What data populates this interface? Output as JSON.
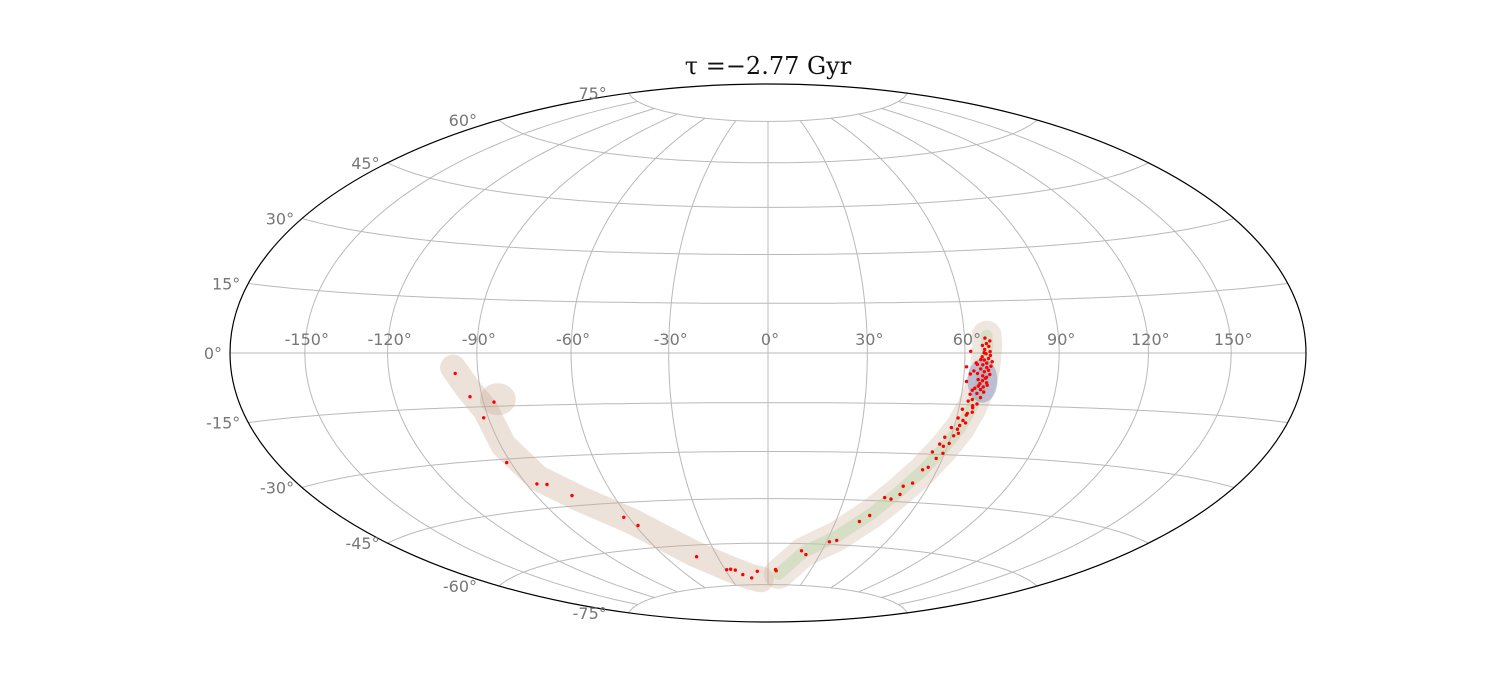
{
  "chart_data": {
    "type": "scatter",
    "projection": "hammer",
    "title": "τ =−2.77 Gyr",
    "grid": true,
    "xlabel": "",
    "ylabel": "",
    "xlim": [
      -180,
      180
    ],
    "ylim": [
      -90,
      90
    ],
    "longitude_ticks": [
      {
        "value": -150,
        "label": "-150°"
      },
      {
        "value": -120,
        "label": "-120°"
      },
      {
        "value": -90,
        "label": "-90°"
      },
      {
        "value": -60,
        "label": "-60°"
      },
      {
        "value": -30,
        "label": "-30°"
      },
      {
        "value": 0,
        "label": "0°"
      },
      {
        "value": 30,
        "label": "30°"
      },
      {
        "value": 60,
        "label": "60°"
      },
      {
        "value": 90,
        "label": "90°"
      },
      {
        "value": 120,
        "label": "120°"
      },
      {
        "value": 150,
        "label": "150°"
      }
    ],
    "latitude_ticks": [
      {
        "value": 75,
        "label": "75°"
      },
      {
        "value": 60,
        "label": "60°"
      },
      {
        "value": 45,
        "label": "45°"
      },
      {
        "value": 30,
        "label": "30°"
      },
      {
        "value": 15,
        "label": "15°"
      },
      {
        "value": 0,
        "label": "0°"
      },
      {
        "value": -15,
        "label": "-15°"
      },
      {
        "value": -30,
        "label": "-30°"
      },
      {
        "value": -45,
        "label": "-45°"
      },
      {
        "value": -60,
        "label": "-60°"
      },
      {
        "value": -75,
        "label": "-75°"
      }
    ],
    "colors": {
      "points": "#ff0000",
      "halo": "#c9ad95",
      "stream_band": "#b9d7a8",
      "core_blob": "#7a8fbf",
      "grid": "#b9b9b9",
      "frame": "#000000",
      "tick_labels": "#777777"
    },
    "series": [
      {
        "points": [
          [
            -97.5,
            -5.6
          ],
          [
            -94.0,
            -12.1
          ],
          [
            -86.5,
            -13.8
          ],
          [
            -91.6,
            -18.1
          ],
          [
            -91.5,
            -31.0
          ],
          [
            -86.0,
            -37.7
          ],
          [
            -82.4,
            -38.1
          ],
          [
            -76.1,
            -41.9
          ],
          [
            -62.1,
            -49.6
          ],
          [
            -58.8,
            -52.5
          ],
          [
            -42.1,
            -64.0
          ],
          [
            -26.0,
            -69.0
          ],
          [
            -28.9,
            -69.1
          ],
          [
            -23.1,
            -69.4
          ],
          [
            -19.1,
            -71.1
          ],
          [
            -13.1,
            -72.4
          ],
          [
            -7.7,
            -70.0
          ],
          [
            5.3,
            -69.4
          ],
          [
            5.9,
            -69.8
          ],
          [
            18.7,
            -62.5
          ],
          [
            22.0,
            -63.8
          ],
          [
            31.5,
            -59.1
          ],
          [
            34.8,
            -58.5
          ],
          [
            40.5,
            -51.9
          ],
          [
            43.5,
            -49.8
          ],
          [
            45.7,
            -43.9
          ],
          [
            48.5,
            -44.3
          ],
          [
            51.0,
            -42.7
          ],
          [
            50.6,
            -40.1
          ],
          [
            53.5,
            -39.0
          ],
          [
            54.8,
            -34.8
          ],
          [
            56.4,
            -34.0
          ],
          [
            57.8,
            -31.2
          ],
          [
            59.4,
            -29.6
          ],
          [
            58.6,
            -27.5
          ],
          [
            60.2,
            -26.6
          ],
          [
            60.8,
            -24.3
          ],
          [
            62.1,
            -23.5
          ],
          [
            61.7,
            -21.2
          ],
          [
            63.4,
            -20.4
          ],
          [
            62.9,
            -18.1
          ],
          [
            64.6,
            -17.2
          ],
          [
            64.2,
            -15.3
          ],
          [
            65.5,
            -14.8
          ],
          [
            63.7,
            -13.5
          ],
          [
            66.2,
            -12.9
          ],
          [
            64.8,
            -11.7
          ],
          [
            66.9,
            -11.3
          ],
          [
            63.9,
            -10.2
          ],
          [
            66.5,
            -9.8
          ],
          [
            65.3,
            -8.9
          ],
          [
            67.4,
            -8.6
          ],
          [
            64.6,
            -7.7
          ],
          [
            66.8,
            -7.3
          ],
          [
            65.9,
            -6.6
          ],
          [
            68.1,
            -6.2
          ],
          [
            64.2,
            -5.9
          ],
          [
            66.3,
            -5.4
          ],
          [
            67.6,
            -5.0
          ],
          [
            65.1,
            -4.6
          ],
          [
            67.0,
            -4.2
          ],
          [
            68.3,
            -3.8
          ],
          [
            65.7,
            -3.4
          ],
          [
            66.9,
            -2.9
          ],
          [
            68.6,
            -2.5
          ],
          [
            66.1,
            -2.0
          ],
          [
            67.4,
            -1.6
          ],
          [
            65.4,
            -1.1
          ],
          [
            68.0,
            -0.7
          ],
          [
            66.6,
            -0.2
          ],
          [
            67.9,
            0.4
          ],
          [
            66.2,
            1.0
          ],
          [
            67.5,
            1.9
          ],
          [
            66.8,
            2.7
          ],
          [
            67.9,
            3.5
          ],
          [
            66.4,
            4.3
          ],
          [
            63.2,
            -10.8
          ],
          [
            62.5,
            -14.0
          ],
          [
            61.2,
            -16.4
          ],
          [
            60.5,
            -19.0
          ],
          [
            59.2,
            -21.9
          ],
          [
            58.0,
            -24.8
          ],
          [
            57.1,
            -26.9
          ],
          [
            55.6,
            -29.3
          ],
          [
            61.0,
            -8.3
          ],
          [
            62.0,
            -6.1
          ],
          [
            60.6,
            -4.0
          ],
          [
            61.8,
            0.5
          ],
          [
            63.6,
            -2.9
          ],
          [
            63.0,
            -5.2
          ],
          [
            64.9,
            -9.6
          ],
          [
            62.7,
            -12.0
          ],
          [
            65.8,
            -10.6
          ],
          [
            67.7,
            -9.3
          ],
          [
            66.0,
            -8.0
          ],
          [
            67.2,
            -7.0
          ],
          [
            64.4,
            -15.9
          ],
          [
            63.1,
            -17.6
          ],
          [
            62.3,
            -19.7
          ],
          [
            61.3,
            -22.3
          ],
          [
            64.0,
            -3.3
          ],
          [
            65.0,
            -1.9
          ],
          [
            66.0,
            0.1
          ],
          [
            65.5,
            2.2
          ]
        ]
      }
    ],
    "halo_path": [
      [
        -98,
        -4
      ],
      [
        -94,
        -10
      ],
      [
        -90,
        -16
      ],
      [
        -89,
        -26
      ],
      [
        -84,
        -36
      ],
      [
        -74,
        -43
      ],
      [
        -60,
        -51
      ],
      [
        -42,
        -63
      ],
      [
        -26,
        -69
      ],
      [
        -14,
        -72
      ],
      [
        -6,
        -73
      ]
    ],
    "stream_path": [
      [
        8,
        -71
      ],
      [
        20,
        -63
      ],
      [
        34,
        -57
      ],
      [
        44,
        -49
      ],
      [
        50,
        -42
      ],
      [
        55,
        -35
      ],
      [
        59,
        -28
      ],
      [
        62,
        -22
      ],
      [
        64,
        -16
      ],
      [
        65.5,
        -10
      ],
      [
        66.5,
        -4
      ],
      [
        67,
        2
      ],
      [
        67,
        5
      ]
    ],
    "halo_side_blob": [
      -85,
      -13
    ]
  }
}
